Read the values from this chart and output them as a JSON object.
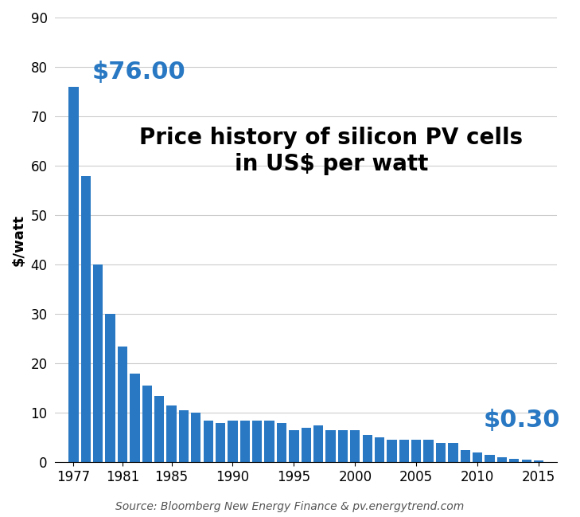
{
  "years": [
    1977,
    1978,
    1979,
    1980,
    1981,
    1982,
    1983,
    1984,
    1985,
    1986,
    1987,
    1988,
    1989,
    1990,
    1991,
    1992,
    1993,
    1994,
    1995,
    1996,
    1997,
    1998,
    1999,
    2000,
    2001,
    2002,
    2003,
    2004,
    2005,
    2006,
    2007,
    2008,
    2009,
    2010,
    2011,
    2012,
    2013,
    2014,
    2015
  ],
  "prices": [
    76.0,
    58.0,
    40.0,
    30.0,
    23.5,
    18.0,
    15.5,
    13.5,
    11.5,
    10.5,
    10.0,
    8.5,
    8.0,
    8.5,
    8.5,
    8.5,
    8.5,
    8.0,
    6.5,
    7.0,
    7.5,
    6.5,
    6.5,
    6.5,
    5.5,
    5.0,
    4.5,
    4.5,
    4.5,
    4.5,
    4.0,
    4.0,
    2.5,
    2.0,
    1.5,
    1.0,
    0.7,
    0.5,
    0.3
  ],
  "bar_color": "#2878c3",
  "title_line1": "Price history of silicon PV cells",
  "title_line2": "in US$ per watt",
  "ylabel": "$/watt",
  "ylim": [
    0,
    90
  ],
  "yticks": [
    0,
    10,
    20,
    30,
    40,
    50,
    60,
    70,
    80,
    90
  ],
  "xtick_positions": [
    1977,
    1981,
    1985,
    1990,
    1995,
    2000,
    2005,
    2010,
    2015
  ],
  "annotation_high_text": "$76.00",
  "annotation_low_text": "$0.30",
  "source_text": "Source: Bloomberg New Energy Finance & pv.energytrend.com",
  "background_color": "#ffffff",
  "grid_color": "#cccccc",
  "title_fontsize": 20,
  "annotation_fontsize": 22,
  "ylabel_fontsize": 13,
  "tick_fontsize": 12,
  "source_fontsize": 10,
  "xlim": [
    1975.5,
    2016.5
  ]
}
